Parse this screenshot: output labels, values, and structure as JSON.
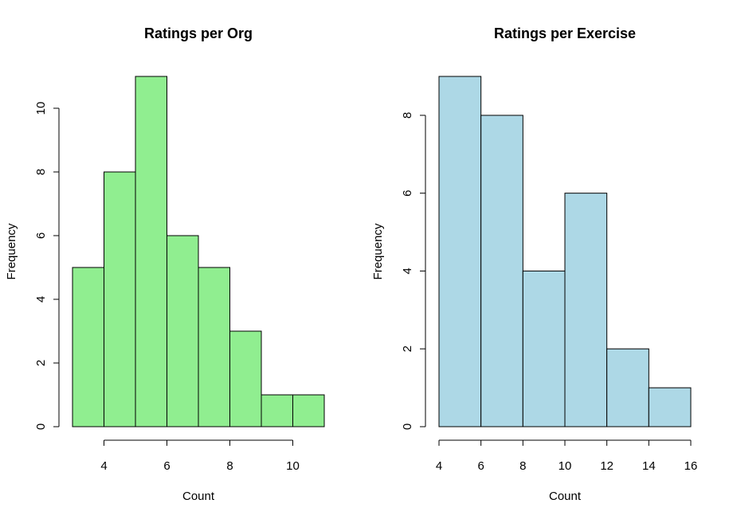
{
  "chart_data": [
    {
      "type": "bar",
      "title": "Ratings per Org",
      "xlabel": "Count",
      "ylabel": "Frequency",
      "bin_edges": [
        3,
        4,
        5,
        6,
        7,
        8,
        9,
        10,
        11
      ],
      "values": [
        5,
        8,
        11,
        6,
        5,
        3,
        1,
        1
      ],
      "xticks": [
        4,
        6,
        8,
        10
      ],
      "yticks": [
        0,
        2,
        4,
        6,
        8,
        10
      ],
      "xlim": [
        3,
        11
      ],
      "ylim": [
        0,
        11
      ],
      "color": "#90EE90",
      "grid": false
    },
    {
      "type": "bar",
      "title": "Ratings per Exercise",
      "xlabel": "Count",
      "ylabel": "Frequency",
      "bin_edges": [
        4,
        6,
        8,
        10,
        12,
        14,
        16
      ],
      "values": [
        9,
        8,
        4,
        6,
        2,
        1
      ],
      "xticks": [
        4,
        6,
        8,
        10,
        12,
        14,
        16
      ],
      "yticks": [
        0,
        2,
        4,
        6,
        8
      ],
      "xlim": [
        4,
        16
      ],
      "ylim": [
        0,
        9
      ],
      "color": "#ADD8E6",
      "grid": false
    }
  ]
}
